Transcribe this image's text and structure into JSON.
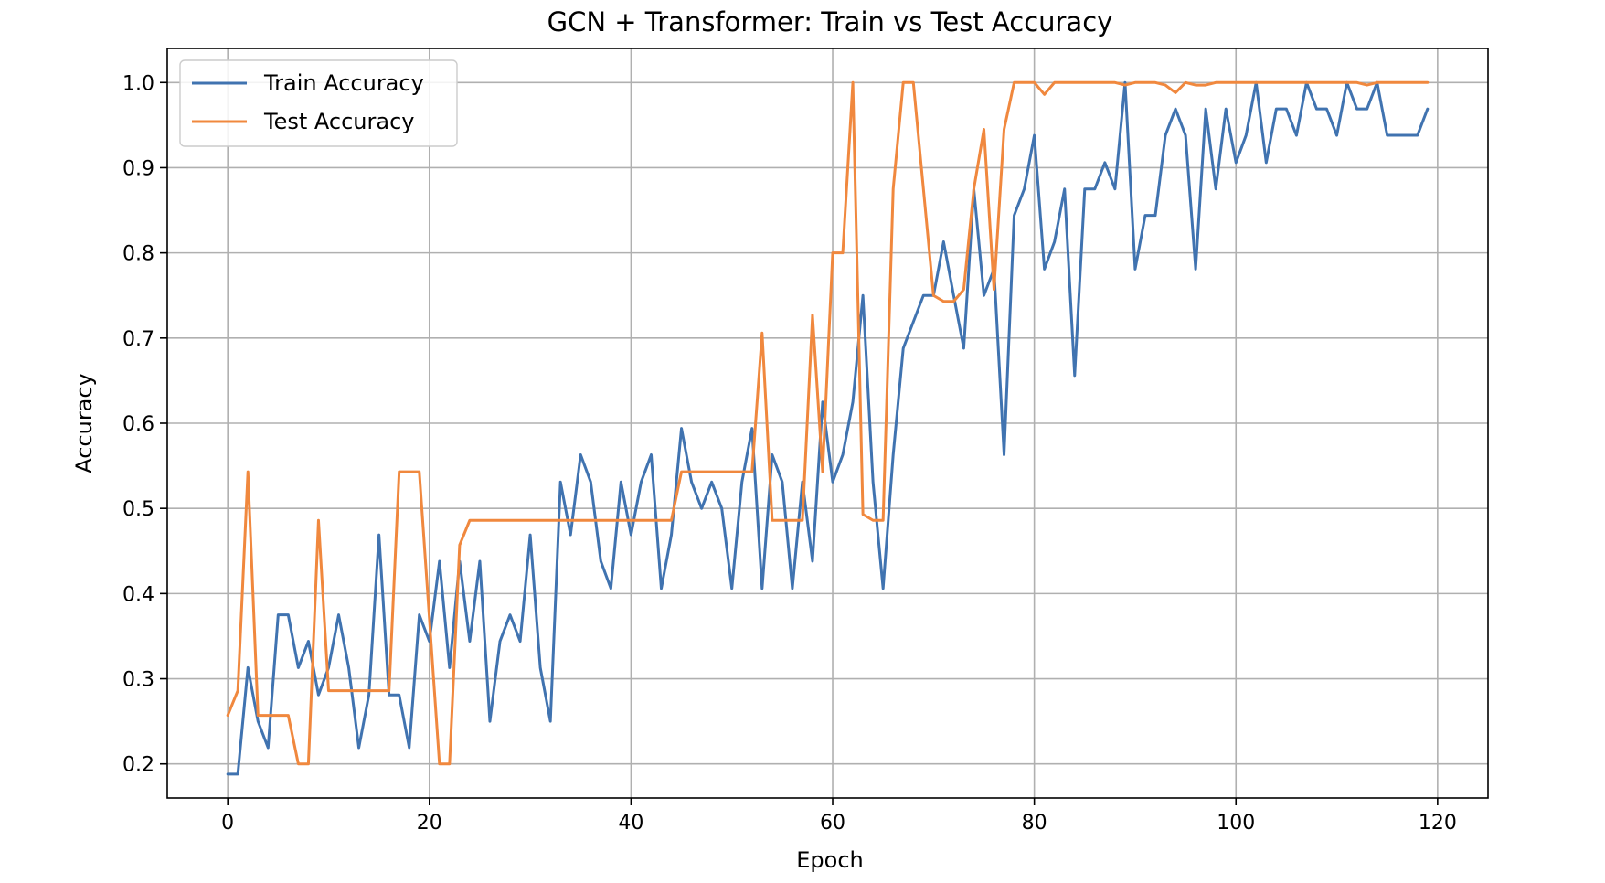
{
  "chart_data": {
    "type": "line",
    "title": "GCN + Transformer: Train vs Test Accuracy",
    "xlabel": "Epoch",
    "ylabel": "Accuracy",
    "xlim": [
      -6,
      125
    ],
    "ylim": [
      0.16,
      1.04
    ],
    "xticks": [
      0,
      20,
      40,
      60,
      80,
      100,
      120
    ],
    "yticks": [
      0.2,
      0.3,
      0.4,
      0.5,
      0.6,
      0.7,
      0.8,
      0.9,
      1.0
    ],
    "grid": true,
    "legend_position": "upper-left",
    "series": [
      {
        "name": "Train Accuracy",
        "color": "#4073b0",
        "values": [
          0.188,
          0.188,
          0.313,
          0.25,
          0.219,
          0.375,
          0.375,
          0.313,
          0.344,
          0.281,
          0.313,
          0.375,
          0.313,
          0.219,
          0.281,
          0.469,
          0.281,
          0.281,
          0.219,
          0.375,
          0.344,
          0.438,
          0.313,
          0.438,
          0.344,
          0.438,
          0.25,
          0.344,
          0.375,
          0.344,
          0.469,
          0.313,
          0.25,
          0.531,
          0.469,
          0.563,
          0.531,
          0.438,
          0.406,
          0.531,
          0.469,
          0.531,
          0.563,
          0.406,
          0.469,
          0.594,
          0.531,
          0.5,
          0.531,
          0.5,
          0.406,
          0.531,
          0.594,
          0.406,
          0.563,
          0.531,
          0.406,
          0.531,
          0.438,
          0.625,
          0.531,
          0.563,
          0.625,
          0.75,
          0.531,
          0.406,
          0.563,
          0.688,
          0.719,
          0.75,
          0.75,
          0.813,
          0.75,
          0.688,
          0.875,
          0.75,
          0.781,
          0.563,
          0.844,
          0.875,
          0.938,
          0.781,
          0.813,
          0.875,
          0.656,
          0.875,
          0.875,
          0.906,
          0.875,
          1.0,
          0.781,
          0.844,
          0.844,
          0.938,
          0.969,
          0.938,
          0.781,
          0.969,
          0.875,
          0.969,
          0.906,
          0.938,
          1.0,
          0.906,
          0.969,
          0.969,
          0.938,
          1.0,
          0.969,
          0.969,
          0.938,
          1.0,
          0.969,
          0.969,
          1.0,
          0.938,
          0.938,
          0.938,
          0.938,
          0.969
        ]
      },
      {
        "name": "Test Accuracy",
        "color": "#f0883e",
        "values": [
          0.257,
          0.286,
          0.543,
          0.257,
          0.257,
          0.257,
          0.257,
          0.2,
          0.2,
          0.486,
          0.286,
          0.286,
          0.286,
          0.286,
          0.286,
          0.286,
          0.286,
          0.543,
          0.543,
          0.543,
          0.371,
          0.2,
          0.2,
          0.457,
          0.486,
          0.486,
          0.486,
          0.486,
          0.486,
          0.486,
          0.486,
          0.486,
          0.486,
          0.486,
          0.486,
          0.486,
          0.486,
          0.486,
          0.486,
          0.486,
          0.486,
          0.486,
          0.486,
          0.486,
          0.486,
          0.543,
          0.543,
          0.543,
          0.543,
          0.543,
          0.543,
          0.543,
          0.543,
          0.706,
          0.486,
          0.486,
          0.486,
          0.486,
          0.727,
          0.543,
          0.8,
          0.8,
          1.0,
          0.493,
          0.486,
          0.486,
          0.875,
          1.0,
          1.0,
          0.875,
          0.75,
          0.743,
          0.743,
          0.757,
          0.875,
          0.945,
          0.757,
          0.945,
          1.0,
          1.0,
          1.0,
          0.986,
          1.0,
          1.0,
          1.0,
          1.0,
          1.0,
          1.0,
          1.0,
          0.997,
          1.0,
          1.0,
          1.0,
          0.997,
          0.988,
          1.0,
          0.997,
          0.997,
          1.0,
          1.0,
          1.0,
          1.0,
          1.0,
          1.0,
          1.0,
          1.0,
          1.0,
          1.0,
          1.0,
          1.0,
          1.0,
          1.0,
          1.0,
          0.997,
          1.0,
          1.0,
          1.0,
          1.0,
          1.0,
          1.0
        ]
      }
    ]
  }
}
